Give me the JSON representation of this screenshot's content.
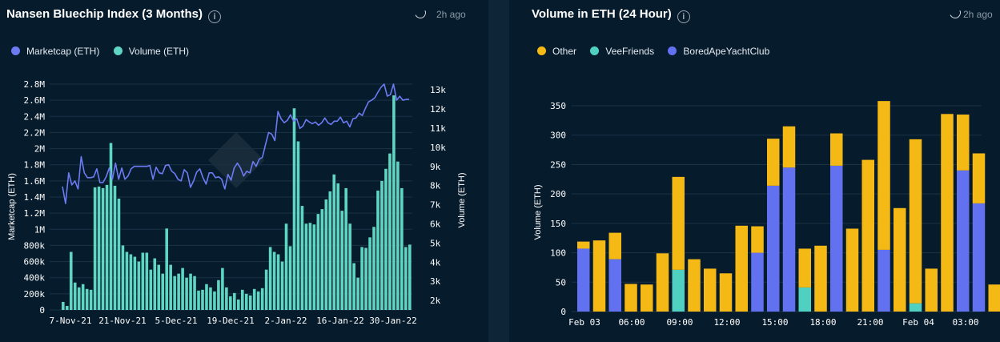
{
  "left_panel": {
    "title": "Nansen Bluechip Index (3 Months)",
    "info_icon": "info-icon",
    "updated": "2h ago",
    "legend": [
      {
        "label": "Marketcap (ETH)",
        "color": "#6c7bf2"
      },
      {
        "label": "Volume (ETH)",
        "color": "#5ed6c3"
      }
    ]
  },
  "right_panel": {
    "title": "Volume in ETH (24 Hour)",
    "info_icon": "info-icon",
    "updated": "2h ago",
    "legend": [
      {
        "label": "Other",
        "color": "#f5b916"
      },
      {
        "label": "VeeFriends",
        "color": "#50d0c0"
      },
      {
        "label": "BoredApeYachtClub",
        "color": "#6171f0"
      }
    ]
  },
  "chart_data": [
    {
      "type": "bar+line",
      "title": "Nansen Bluechip Index (3 Months)",
      "xlabel": "",
      "ylabel_left": "Marketcap (ETH)",
      "ylabel_right": "Volume (ETH)",
      "x_tick_labels": [
        "7-Nov-21",
        "21-Nov-21",
        "5-Dec-21",
        "19-Dec-21",
        "2-Jan-22",
        "16-Jan-22",
        "30-Jan-22"
      ],
      "y_left_ticks": [
        "0",
        "200k",
        "400k",
        "600k",
        "800k",
        "1M",
        "1.2M",
        "1.4M",
        "1.6M",
        "1.8M",
        "2M",
        "2.2M",
        "2.4M",
        "2.6M",
        "2.8M"
      ],
      "y_right_ticks": [
        "2k",
        "3k",
        "4k",
        "5k",
        "6k",
        "7k",
        "8k",
        "9k",
        "10k",
        "11k",
        "12k",
        "13k"
      ],
      "ylim_left": [
        0,
        2800000
      ],
      "ylim_right": [
        1500,
        13300
      ],
      "grid": true,
      "legend_position": "top-left",
      "series": [
        {
          "name": "Volume (ETH)",
          "kind": "bar",
          "axis": "left",
          "color": "#5ed6c3",
          "values": [
            100000,
            50000,
            720000,
            340000,
            280000,
            320000,
            260000,
            250000,
            1520000,
            1530000,
            1510000,
            1550000,
            2070000,
            1540000,
            1380000,
            800000,
            720000,
            690000,
            660000,
            600000,
            710000,
            710000,
            500000,
            640000,
            560000,
            450000,
            1010000,
            560000,
            420000,
            450000,
            520000,
            400000,
            450000,
            420000,
            240000,
            250000,
            320000,
            280000,
            230000,
            370000,
            520000,
            280000,
            170000,
            210000,
            130000,
            250000,
            200000,
            180000,
            260000,
            230000,
            270000,
            500000,
            780000,
            720000,
            690000,
            600000,
            1070000,
            790000,
            2500000,
            2090000,
            1290000,
            1070000,
            1080000,
            1060000,
            1190000,
            1250000,
            1370000,
            1470000,
            1680000,
            1570000,
            1230000,
            1510000,
            1070000,
            580000,
            400000,
            780000,
            770000,
            900000,
            1030000,
            1480000,
            1600000,
            1750000,
            1940000,
            2660000,
            1840000,
            1510000,
            780000,
            810000
          ]
        },
        {
          "name": "Marketcap (ETH)",
          "kind": "line",
          "axis": "left",
          "color": "#6c7bf2",
          "values": [
            1530000,
            1320000,
            1700000,
            1550000,
            1600000,
            1500000,
            1900000,
            1700000,
            1640000,
            1640000,
            1650000,
            1750000,
            1580000,
            1580000,
            1650000,
            1760000,
            1620000,
            1820000,
            1620000,
            1760000,
            1620000,
            1660000,
            1750000,
            1780000,
            1780000,
            1780000,
            1780000,
            1780000,
            1790000,
            1620000,
            1770000,
            1700000,
            1690000,
            1790000,
            1800000,
            1720000,
            1690000,
            1620000,
            1600000,
            1740000,
            1700000,
            1520000,
            1600000,
            1710000,
            1750000,
            1640000,
            1560000,
            1700000,
            1700000,
            1640000,
            1650000,
            1620000,
            1500000,
            1680000,
            1610000,
            1760000,
            1820000,
            1760000,
            1660000,
            1720000,
            1700000,
            1840000,
            1780000,
            1870000,
            1890000,
            2050000,
            2200000,
            2180000,
            2100000,
            2460000,
            2370000,
            2320000,
            2350000,
            2420000,
            2340000,
            2370000,
            2250000,
            2280000,
            2360000,
            2330000,
            2310000,
            2330000,
            2290000,
            2320000,
            2380000,
            2320000,
            2300000,
            2340000,
            2340000,
            2390000,
            2320000,
            2340000,
            2270000,
            2370000,
            2380000,
            2440000,
            2410000,
            2500000,
            2580000,
            2600000,
            2630000,
            2700000,
            2760000,
            2800000,
            2650000,
            2670000,
            2800000,
            2600000,
            2650000,
            2600000,
            2610000,
            2610000
          ]
        }
      ]
    },
    {
      "type": "bar",
      "stacked": true,
      "title": "Volume in ETH (24 Hour)",
      "xlabel": "",
      "ylabel": "Volume (ETH)",
      "x_tick_labels": [
        "Feb 03",
        "06:00",
        "09:00",
        "12:00",
        "15:00",
        "18:00",
        "21:00",
        "Feb 04",
        "03:00"
      ],
      "ylim": [
        0,
        380
      ],
      "y_ticks": [
        0,
        50,
        100,
        150,
        200,
        250,
        300,
        350
      ],
      "grid": true,
      "legend_position": "top-left",
      "series": [
        {
          "name": "BoredApeYachtClub",
          "color": "#6171f0",
          "values": [
            107,
            0,
            89,
            0,
            0,
            0,
            0,
            0,
            0,
            0,
            0,
            100,
            214,
            245,
            0,
            0,
            248,
            0,
            0,
            105,
            0,
            0,
            0,
            0,
            240,
            184,
            0
          ]
        },
        {
          "name": "VeeFriends",
          "color": "#50d0c0",
          "values": [
            0,
            0,
            0,
            0,
            0,
            0,
            71,
            0,
            0,
            0,
            0,
            0,
            0,
            0,
            41,
            0,
            0,
            0,
            0,
            0,
            0,
            14,
            0,
            0,
            0,
            0,
            0
          ]
        },
        {
          "name": "Other",
          "color": "#f5b916",
          "values": [
            12,
            121,
            45,
            47,
            46,
            99,
            158,
            89,
            73,
            65,
            146,
            45,
            80,
            70,
            66,
            112,
            55,
            141,
            258,
            253,
            176,
            279,
            73,
            336,
            95,
            85,
            46
          ]
        }
      ]
    }
  ]
}
